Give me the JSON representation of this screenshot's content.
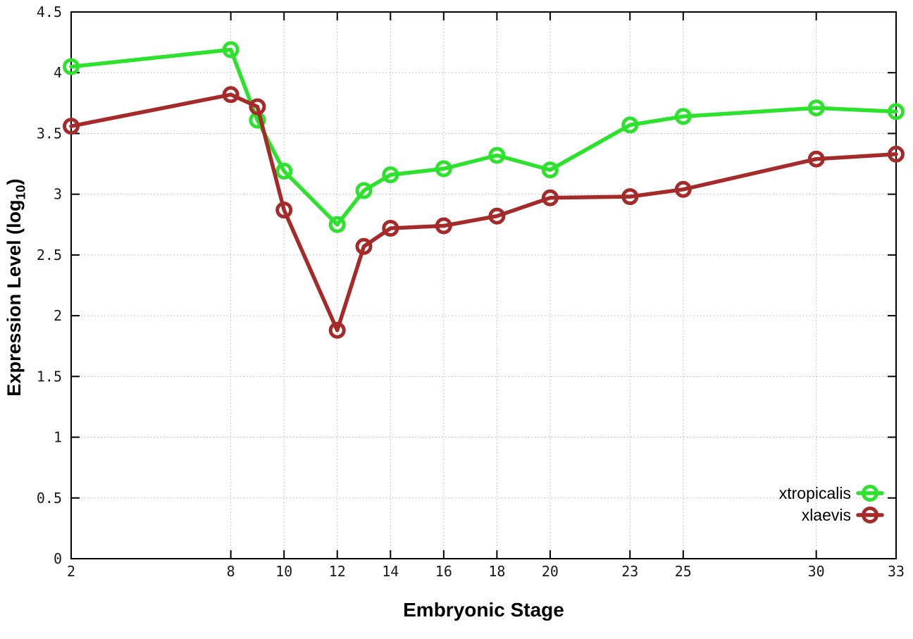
{
  "chart_data": {
    "type": "line",
    "title": "",
    "xlabel": "Embryonic Stage",
    "ylabel": "Expression Level (log10)",
    "ylabel_parts": {
      "prefix": "Expression Level (log",
      "sub": "10",
      "suffix": ")"
    },
    "xlim": [
      2,
      33
    ],
    "ylim": [
      0,
      4.5
    ],
    "grid": true,
    "legend_position": "inside-bottom-right",
    "marker": "open-circle",
    "background": "#ffffff",
    "x": [
      2,
      8,
      9,
      10,
      12,
      13,
      14,
      16,
      18,
      20,
      23,
      25,
      30,
      33
    ],
    "series": [
      {
        "name": "xtropicalis",
        "color": "#2ce22c",
        "values": [
          4.05,
          4.19,
          3.61,
          3.19,
          2.75,
          3.03,
          3.16,
          3.21,
          3.32,
          3.2,
          3.57,
          3.64,
          3.71,
          3.68
        ]
      },
      {
        "name": "xlaevis",
        "color": "#a52a2a",
        "values": [
          3.56,
          3.82,
          3.72,
          2.87,
          1.88,
          2.57,
          2.72,
          2.74,
          2.82,
          2.97,
          2.98,
          3.04,
          3.29,
          3.33
        ]
      }
    ],
    "x_ticks": {
      "values": [
        2,
        8,
        10,
        12,
        14,
        16,
        18,
        20,
        23,
        25,
        30,
        33
      ],
      "labels": [
        "2",
        "8",
        "10",
        "12",
        "14",
        "16",
        "18",
        "20",
        "23",
        "25",
        "30",
        "33"
      ]
    },
    "y_ticks": {
      "values": [
        0,
        0.5,
        1,
        1.5,
        2,
        2.5,
        3,
        3.5,
        4,
        4.5
      ],
      "labels": [
        "0",
        "0.5",
        "1",
        "1.5",
        "2",
        "2.5",
        "3",
        "3.5",
        "4",
        "4.5"
      ]
    }
  }
}
